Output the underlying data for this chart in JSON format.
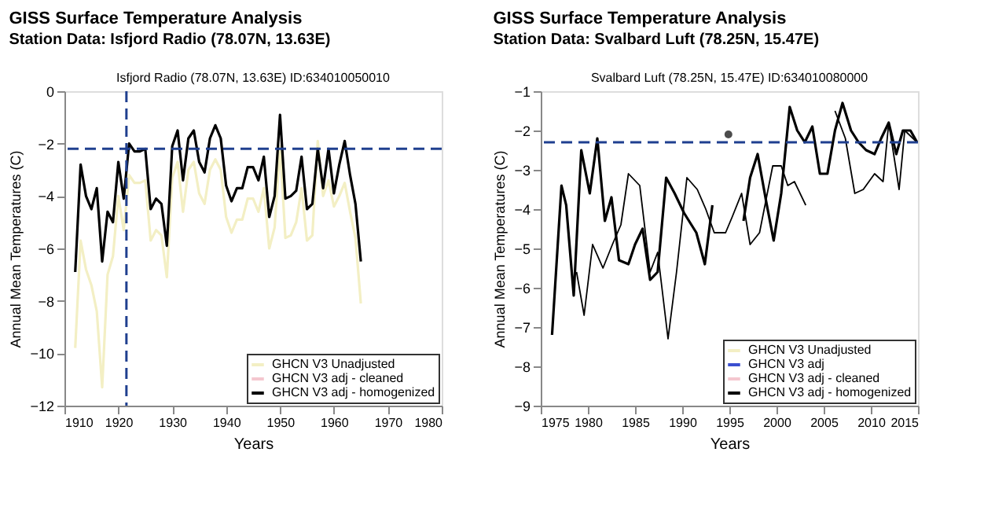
{
  "chart_data": [
    {
      "type": "line",
      "title": "GISS Surface Temperature Analysis",
      "subtitle": "Station Data: Isfjord Radio (78.07N, 13.63E)",
      "annotations": [
        "Isfjord Radio (78.07N, 13.63E) ID:634010050010"
      ],
      "xlabel": "Years",
      "ylabel": "Annual Mean Temperatures (C)",
      "x": [
        1912,
        1913,
        1914,
        1915,
        1916,
        1917,
        1918,
        1919,
        1920,
        1921,
        1922,
        1923,
        1924,
        1925,
        1926,
        1927,
        1928,
        1929,
        1930,
        1931,
        1932,
        1933,
        1934,
        1935,
        1936,
        1937,
        1938,
        1939,
        1940,
        1941,
        1942,
        1943,
        1944,
        1945,
        1946,
        1947,
        1948,
        1949,
        1950,
        1951,
        1952,
        1953,
        1954,
        1955,
        1956,
        1957,
        1958,
        1959,
        1960,
        1961,
        1962,
        1963,
        1964,
        1965
      ],
      "series": [
        {
          "name": "GHCN V3 Unadjusted",
          "color": "#f3efc4",
          "values": [
            -9.8,
            -5.7,
            -6.8,
            -7.4,
            -8.4,
            -11.3,
            -7.0,
            -6.3,
            -4.0,
            -5.3,
            -3.2,
            -3.5,
            -3.5,
            -3.4,
            -5.7,
            -5.3,
            -5.5,
            -7.1,
            -3.3,
            -2.7,
            -4.6,
            -3.0,
            -2.7,
            -3.9,
            -4.3,
            -3.0,
            -2.6,
            -3.0,
            -4.8,
            -5.4,
            -4.9,
            -4.9,
            -4.1,
            -4.1,
            -4.6,
            -3.7,
            -6.0,
            -5.2,
            -2.1,
            -5.6,
            -5.5,
            -5.0,
            -3.7,
            -5.7,
            -5.5,
            -1.9,
            -4.0,
            -3.4,
            -4.4,
            -4.0,
            -3.5,
            -4.6,
            -5.6,
            -8.1
          ]
        },
        {
          "name": "GHCN V3 adj - cleaned",
          "color": "#f4c7cf",
          "values": [
            null,
            null,
            null,
            null,
            null,
            null,
            null,
            null,
            null,
            null,
            null,
            null,
            null,
            null,
            null,
            null,
            null,
            null,
            null,
            null,
            null,
            null,
            null,
            null,
            null,
            null,
            null,
            null,
            null,
            null,
            null,
            null,
            null,
            null,
            null,
            null,
            null,
            null,
            null,
            null,
            null,
            null,
            null,
            null,
            null,
            null,
            null,
            null,
            null,
            null,
            null,
            null,
            null,
            null
          ]
        },
        {
          "name": "GHCN V3 adj - homogenized",
          "color": "#000000",
          "values": [
            -6.9,
            -2.8,
            -4.0,
            -4.5,
            -3.7,
            -6.5,
            -4.6,
            -5.0,
            -2.7,
            -4.1,
            -2.0,
            -2.3,
            -2.3,
            -2.2,
            -4.5,
            -4.1,
            -4.3,
            -5.9,
            -2.1,
            -1.5,
            -3.4,
            -1.8,
            -1.5,
            -2.7,
            -3.1,
            -1.8,
            -1.3,
            -1.8,
            -3.6,
            -4.2,
            -3.7,
            -3.7,
            -2.9,
            -2.9,
            -3.4,
            -2.5,
            -4.8,
            -4.0,
            -0.9,
            -4.1,
            -4.0,
            -3.8,
            -2.5,
            -4.5,
            -4.3,
            -2.2,
            -3.7,
            -2.2,
            -3.9,
            -2.8,
            -1.9,
            -3.2,
            -4.3,
            -6.5
          ]
        }
      ],
      "xlim": [
        1910,
        1980
      ],
      "xticks": [
        1910,
        1920,
        1930,
        1940,
        1950,
        1960,
        1970,
        1980
      ],
      "ylim": [
        -12,
        0
      ],
      "yticks": [
        -12,
        -10,
        -8,
        -6,
        -4,
        -2,
        0
      ],
      "ref_lines": [
        {
          "axis": "y",
          "value": -2.2,
          "color": "#1f3f8f",
          "line_style": "dashed"
        },
        {
          "axis": "x",
          "value": 1921.5,
          "color": "#1f3f8f",
          "line_style": "dashed"
        }
      ],
      "legend": "bottom right",
      "grid": false,
      "marker": "none",
      "line_style": "solid"
    },
    {
      "type": "line",
      "title": "GISS Surface Temperature Analysis",
      "subtitle": "Station Data: Svalbard Luft (78.25N, 15.47E)",
      "annotations": [
        "Svalbard Luft (78.25N, 15.47E) ID:634010080000"
      ],
      "xlabel": "Years",
      "ylabel": "Annual Mean Temperatures (C)",
      "series": [
        {
          "name": "GHCN V3 Unadjusted",
          "color": "#f3efc4"
        },
        {
          "name": "GHCN V3 adj",
          "color": "#3b4fd0"
        },
        {
          "name": "GHCN V3 adj - cleaned",
          "color": "#f4c7cf"
        },
        {
          "name": "GHCN V3 adj - homogenized",
          "color": "#000000",
          "x": [
            1976.2,
            1977.2,
            1977.7,
            1978.5,
            1979.3,
            1980.2,
            1981.0,
            1981.8,
            1982.5,
            1983.3,
            1984.3,
            1985.0,
            1985.8,
            1986.6,
            1987.4,
            1988.3,
            1989.2,
            1990.2,
            1991.5,
            1992.4,
            1993.2,
            1995.0,
            1996.5,
            1997.2,
            1998.0,
            1998.9,
            1999.7,
            2000.5,
            2001.4,
            2002.2,
            2003.0,
            2003.8,
            2004.6,
            2005.4,
            2006.2,
            2007.0,
            2007.9,
            2008.7,
            2009.5,
            2010.4,
            2011.1,
            2011.9,
            2012.7,
            2013.4,
            2014.2,
            2014.9
          ],
          "values": [
            -7.2,
            -3.4,
            -3.9,
            -6.2,
            -2.5,
            -3.6,
            -2.2,
            -4.3,
            -3.7,
            -5.3,
            -5.4,
            -4.9,
            -4.5,
            -5.8,
            -5.6,
            -3.2,
            -3.6,
            -4.1,
            -4.6,
            -5.4,
            -3.9,
            null,
            -4.3,
            -3.2,
            -2.6,
            -3.8,
            -4.8,
            -3.6,
            -1.4,
            -2.0,
            -2.3,
            -1.9,
            -3.1,
            -3.1,
            -2.0,
            -1.3,
            -2.0,
            -2.3,
            -2.5,
            -2.6,
            -2.2,
            -1.8,
            -2.6,
            -2.0,
            -2.0,
            -2.3
          ]
        },
        {
          "color": "#000000",
          "x": [
            1978.8,
            1979.6,
            1980.5,
            1981.6,
            1982.6,
            1983.5,
            1984.3,
            1985.5,
            1986.6,
            1987.4,
            1988.5,
            1989.4,
            1990.5,
            1991.6,
            1992.5,
            1993.4,
            1994.6,
            1995.3,
            1996.3,
            1997.2,
            1998.2,
            1999.6,
            2000.5,
            2001.2,
            2001.9,
            2003.1,
            2004.5,
            2006.2,
            2007.3,
            2008.3,
            2009.2,
            2010.4,
            2011.3,
            2011.9,
            2013.0,
            2013.6,
            2014.9
          ],
          "values": [
            -5.6,
            -6.7,
            -4.9,
            -5.5,
            -4.9,
            -4.4,
            -3.1,
            -3.4,
            -5.6,
            -5.1,
            -7.3,
            -5.6,
            -3.2,
            -3.5,
            -4.0,
            -4.6,
            -4.6,
            -4.2,
            -3.6,
            -4.9,
            -4.6,
            -2.9,
            -2.9,
            -3.4,
            -3.3,
            -3.9,
            null,
            -1.5,
            -2.2,
            -3.6,
            -3.5,
            -3.1,
            -3.3,
            -1.8,
            -3.5,
            -2.0,
            -2.3
          ]
        },
        {
          "type": "scatter",
          "marker": "circle",
          "color": "#000000",
          "x": [
            1994.9
          ],
          "values": [
            -2.1
          ]
        }
      ],
      "xlim": [
        1975,
        2015
      ],
      "xticks": [
        1975,
        1980,
        1985,
        1990,
        1995,
        2000,
        2005,
        2010,
        2015
      ],
      "ylim": [
        -9,
        -1
      ],
      "yticks": [
        -9,
        -8,
        -7,
        -6,
        -5,
        -4,
        -3,
        -2,
        -1
      ],
      "ref_lines": [
        {
          "axis": "y",
          "value": -2.3,
          "color": "#1f3f8f",
          "line_style": "dashed"
        }
      ],
      "legend": "bottom right",
      "grid": false,
      "marker": "none",
      "line_style": "solid"
    }
  ]
}
